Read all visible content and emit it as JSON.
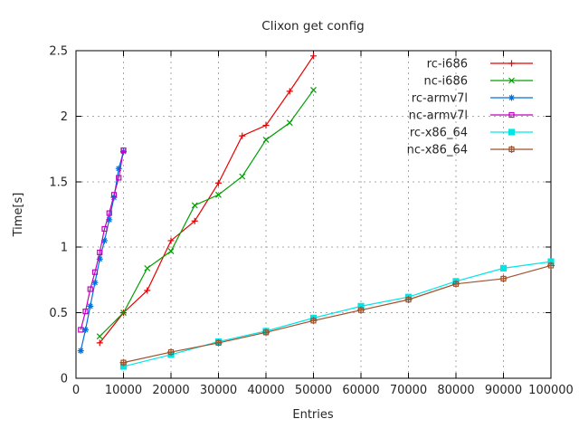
{
  "title": "Clixon get config",
  "chart_data": {
    "type": "line",
    "title": "Clixon get config",
    "xlabel": "Entries",
    "ylabel": "Time[s]",
    "xlim": [
      0,
      100000
    ],
    "ylim": [
      0,
      2.5
    ],
    "grid": true,
    "legend_position": "top-right-inside",
    "xticks": [
      0,
      10000,
      20000,
      30000,
      40000,
      50000,
      60000,
      70000,
      80000,
      90000,
      100000
    ],
    "xtick_labels": [
      "0",
      "10000",
      "20000",
      "30000",
      "40000",
      "50000",
      "60000",
      "70000",
      "80000",
      "90000",
      "100000"
    ],
    "yticks": [
      0,
      0.5,
      1,
      1.5,
      2,
      2.5
    ],
    "ytick_labels": [
      "0",
      "0.5",
      "1",
      "1.5",
      "2",
      "2.5"
    ],
    "series": [
      {
        "name": "rc-i686",
        "color": "#e60000",
        "marker": "plus",
        "x": [
          5000,
          10000,
          15000,
          20000,
          25000,
          30000,
          35000,
          40000,
          45000,
          50000
        ],
        "y": [
          0.27,
          0.5,
          0.67,
          1.05,
          1.2,
          1.49,
          1.85,
          1.93,
          2.19,
          2.46
        ]
      },
      {
        "name": "nc-i686",
        "color": "#00a000",
        "marker": "cross",
        "x": [
          5000,
          10000,
          15000,
          20000,
          25000,
          30000,
          35000,
          40000,
          45000,
          50000
        ],
        "y": [
          0.32,
          0.5,
          0.84,
          0.97,
          1.32,
          1.4,
          1.54,
          1.82,
          1.95,
          2.2
        ]
      },
      {
        "name": "rc-armv7l",
        "color": "#0070dd",
        "marker": "asterisk",
        "x": [
          1000,
          2000,
          3000,
          4000,
          5000,
          6000,
          7000,
          8000,
          9000,
          10000
        ],
        "y": [
          0.21,
          0.37,
          0.55,
          0.73,
          0.91,
          1.05,
          1.21,
          1.38,
          1.6,
          1.73
        ]
      },
      {
        "name": "nc-armv7l",
        "color": "#bf00bf",
        "marker": "open-square",
        "x": [
          1000,
          2000,
          3000,
          4000,
          5000,
          6000,
          7000,
          8000,
          9000,
          10000
        ],
        "y": [
          0.37,
          0.51,
          0.68,
          0.81,
          0.96,
          1.14,
          1.26,
          1.4,
          1.53,
          1.74
        ]
      },
      {
        "name": "rc-x86_64",
        "color": "#00e6e6",
        "marker": "filled-square",
        "x": [
          10000,
          20000,
          30000,
          40000,
          50000,
          60000,
          70000,
          80000,
          90000,
          100000
        ],
        "y": [
          0.09,
          0.18,
          0.28,
          0.36,
          0.46,
          0.55,
          0.62,
          0.74,
          0.84,
          0.89
        ]
      },
      {
        "name": "nc-x86_64",
        "color": "#a0522d",
        "marker": "boxed-plus",
        "x": [
          10000,
          20000,
          30000,
          40000,
          50000,
          60000,
          70000,
          80000,
          90000,
          100000
        ],
        "y": [
          0.12,
          0.2,
          0.27,
          0.35,
          0.44,
          0.52,
          0.6,
          0.72,
          0.76,
          0.86
        ]
      }
    ]
  }
}
